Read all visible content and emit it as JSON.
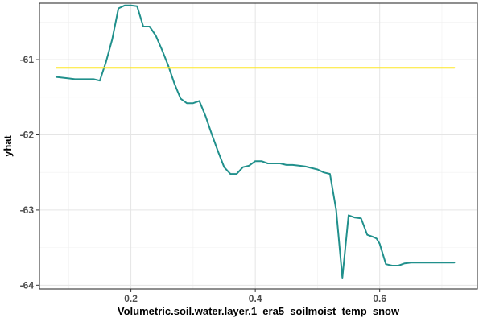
{
  "chart_data": {
    "type": "line",
    "xlabel": "Volumetric.soil.water.layer.1_era5_soilmoist_temp_snow",
    "ylabel": "yhat",
    "xlim": [
      0.053,
      0.757
    ],
    "ylim": [
      -64.05,
      -60.25
    ],
    "x_ticks": [
      0.2,
      0.4,
      0.6
    ],
    "x_tick_labels": [
      "0.2",
      "0.4",
      "0.6"
    ],
    "y_ticks": [
      -61,
      -62,
      -63,
      -64
    ],
    "y_tick_labels": [
      "-61",
      "-62",
      "-63",
      "-64"
    ],
    "grid": true,
    "legend": "none",
    "series": [
      {
        "key": "pdp",
        "color": "#21908c",
        "x": [
          0.08,
          0.09,
          0.1,
          0.11,
          0.12,
          0.13,
          0.14,
          0.15,
          0.16,
          0.17,
          0.18,
          0.19,
          0.2,
          0.21,
          0.22,
          0.23,
          0.24,
          0.25,
          0.26,
          0.27,
          0.28,
          0.29,
          0.3,
          0.31,
          0.32,
          0.33,
          0.34,
          0.35,
          0.36,
          0.37,
          0.38,
          0.39,
          0.4,
          0.41,
          0.42,
          0.43,
          0.44,
          0.45,
          0.46,
          0.47,
          0.48,
          0.49,
          0.5,
          0.51,
          0.52,
          0.53,
          0.54,
          0.55,
          0.56,
          0.57,
          0.58,
          0.59,
          0.595,
          0.6,
          0.61,
          0.62,
          0.63,
          0.64,
          0.65,
          0.66,
          0.67,
          0.68,
          0.69,
          0.7,
          0.71,
          0.72
        ],
        "values": [
          -61.23,
          -61.24,
          -61.25,
          -61.26,
          -61.26,
          -61.26,
          -61.26,
          -61.28,
          -61.03,
          -60.73,
          -60.32,
          -60.28,
          -60.28,
          -60.29,
          -60.56,
          -60.56,
          -60.68,
          -60.87,
          -61.08,
          -61.32,
          -61.52,
          -61.58,
          -61.58,
          -61.55,
          -61.75,
          -61.99,
          -62.22,
          -62.43,
          -62.52,
          -62.52,
          -62.43,
          -62.41,
          -62.35,
          -62.35,
          -62.38,
          -62.38,
          -62.38,
          -62.4,
          -62.4,
          -62.41,
          -62.42,
          -62.44,
          -62.46,
          -62.5,
          -62.52,
          -63.0,
          -63.9,
          -63.07,
          -63.1,
          -63.11,
          -63.33,
          -63.36,
          -63.38,
          -63.45,
          -63.72,
          -63.74,
          -63.74,
          -63.71,
          -63.7,
          -63.7,
          -63.7,
          -63.7,
          -63.7,
          -63.7,
          -63.7,
          -63.7
        ]
      },
      {
        "key": "mean",
        "color": "#fde725",
        "x": [
          0.08,
          0.72
        ],
        "values": [
          -61.11,
          -61.11
        ]
      }
    ]
  }
}
